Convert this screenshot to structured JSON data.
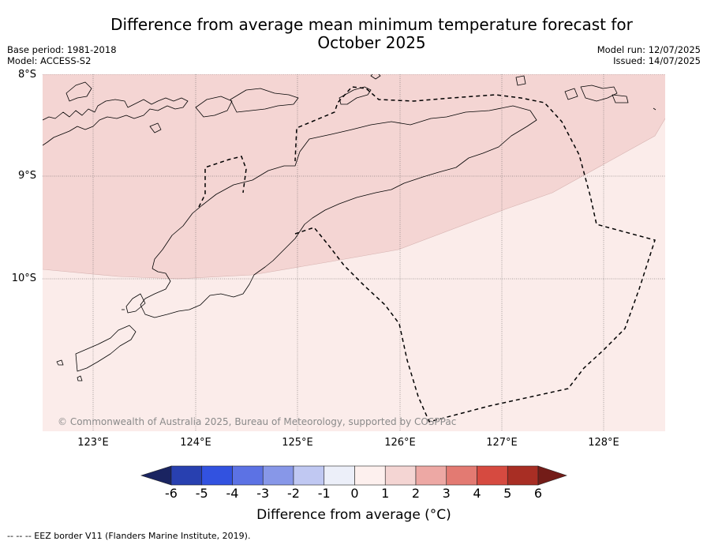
{
  "title": "Difference from average mean minimum temperature forecast for October 2025",
  "meta": {
    "base_period": "Base period: 1981-2018",
    "model": "Model: ACCESS-S2",
    "model_run": "Model run: 12/07/2025",
    "issued": "Issued: 14/07/2025"
  },
  "map": {
    "lat_labels": [
      "8°S",
      "9°S",
      "10°S"
    ],
    "lon_labels": [
      "123°E",
      "124°E",
      "125°E",
      "126°E",
      "127°E",
      "128°E"
    ],
    "anomaly_zones": [
      {
        "category": "1 to 2",
        "color": "#f4d5d3",
        "area": "north"
      },
      {
        "category": "0 to 1",
        "color": "#fbecea",
        "area": "south"
      }
    ],
    "coastline_color": "#000000",
    "eez_border_style": "dashed"
  },
  "copyright": "© Commonwealth of Australia 2025, Bureau of Meteorology, supported by COSPPac",
  "colorbar": {
    "ticks": [
      "-6",
      "-5",
      "-4",
      "-3",
      "-2",
      "-1",
      "0",
      "1",
      "2",
      "3",
      "4",
      "5",
      "6"
    ],
    "colors": [
      "#1a2461",
      "#2840b0",
      "#3252e0",
      "#5c72e4",
      "#8797e8",
      "#c0c8f2",
      "#eceff9",
      "#fdf0ee",
      "#f4d5d3",
      "#eda8a4",
      "#e37a72",
      "#d64a40",
      "#a82e24",
      "#731c18"
    ],
    "label": "Difference from average (°C)"
  },
  "footnote": "--  --  -- EEZ border V11 (Flanders Marine Institute, 2019)."
}
